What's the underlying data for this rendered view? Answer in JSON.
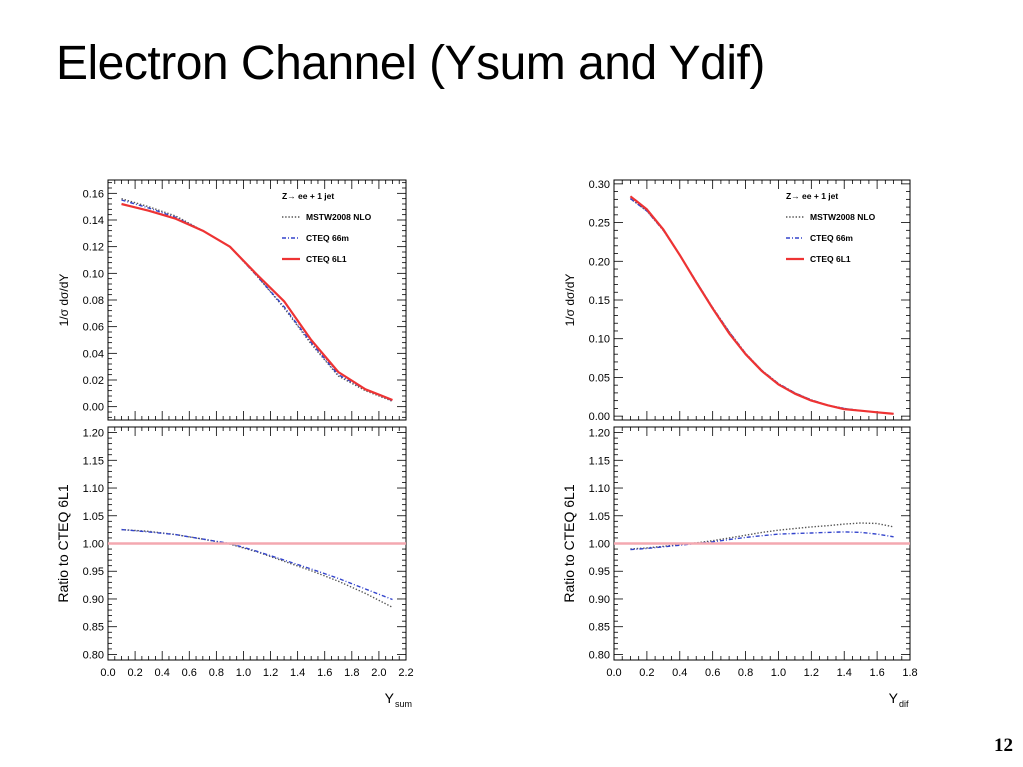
{
  "slide": {
    "title": "Electron Channel (Ysum and Ydif)",
    "page_number": "12"
  },
  "chart_data": [
    {
      "type": "line",
      "panel": "main",
      "title": "",
      "ylabel": "1/σ dσ/dY",
      "xlim": [
        0.0,
        2.2
      ],
      "ylim": [
        -0.01,
        0.17
      ],
      "yticks": [
        "0.00",
        "0.02",
        "0.04",
        "0.06",
        "0.08",
        "0.10",
        "0.12",
        "0.14",
        "0.16"
      ],
      "legend_header": "Z→ ee + 1 jet",
      "legend_position": "top-right",
      "series": [
        {
          "name": "MSTW2008 NLO",
          "style": "dotted",
          "color": "#555555",
          "x": [
            0.1,
            0.3,
            0.5,
            0.7,
            0.9,
            1.1,
            1.3,
            1.5,
            1.7,
            1.9,
            2.1
          ],
          "y": [
            0.156,
            0.15,
            0.143,
            0.132,
            0.12,
            0.098,
            0.074,
            0.047,
            0.023,
            0.012,
            0.004
          ]
        },
        {
          "name": "CTEQ 66m",
          "style": "dashdot",
          "color": "#3344cc",
          "x": [
            0.1,
            0.3,
            0.5,
            0.7,
            0.9,
            1.1,
            1.3,
            1.5,
            1.7,
            1.9,
            2.1
          ],
          "y": [
            0.155,
            0.149,
            0.142,
            0.132,
            0.12,
            0.098,
            0.075,
            0.048,
            0.024,
            0.013,
            0.0045
          ]
        },
        {
          "name": "CTEQ 6L1",
          "style": "solid",
          "color": "#ee3333",
          "x": [
            0.1,
            0.3,
            0.5,
            0.7,
            0.9,
            1.1,
            1.3,
            1.5,
            1.7,
            1.9,
            2.1
          ],
          "y": [
            0.152,
            0.147,
            0.141,
            0.132,
            0.12,
            0.099,
            0.079,
            0.05,
            0.026,
            0.013,
            0.005
          ]
        }
      ]
    },
    {
      "type": "line",
      "panel": "ratio",
      "title": "",
      "xlabel": "Y",
      "xlabel_sub": "sum",
      "ylabel": "Ratio to CTEQ 6L1",
      "xlim": [
        0.0,
        2.2
      ],
      "ylim": [
        0.79,
        1.21
      ],
      "xticks": [
        "0.0",
        "0.2",
        "0.4",
        "0.6",
        "0.8",
        "1.0",
        "1.2",
        "1.4",
        "1.6",
        "1.8",
        "2.0",
        "2.2"
      ],
      "yticks": [
        "0.80",
        "0.85",
        "0.90",
        "0.95",
        "1.00",
        "1.05",
        "1.10",
        "1.15",
        "1.20"
      ],
      "reference_line": 1.0,
      "series": [
        {
          "name": "MSTW2008 NLO",
          "style": "dotted",
          "color": "#555555",
          "x": [
            0.1,
            0.3,
            0.5,
            0.7,
            0.9,
            1.1,
            1.3,
            1.5,
            1.7,
            1.9,
            2.1
          ],
          "y": [
            1.025,
            1.022,
            1.016,
            1.008,
            0.999,
            0.985,
            0.968,
            0.951,
            0.932,
            0.91,
            0.885
          ]
        },
        {
          "name": "CTEQ 66m",
          "style": "dashdot",
          "color": "#3344cc",
          "x": [
            0.1,
            0.3,
            0.5,
            0.7,
            0.9,
            1.1,
            1.3,
            1.5,
            1.7,
            1.9,
            2.1
          ],
          "y": [
            1.025,
            1.021,
            1.016,
            1.008,
            1.0,
            0.986,
            0.97,
            0.954,
            0.937,
            0.918,
            0.899
          ]
        },
        {
          "name": "CTEQ 6L1",
          "style": "solid",
          "color": "#f4a8b0",
          "x": [
            0.0,
            2.2
          ],
          "y": [
            1.0,
            1.0
          ]
        }
      ]
    },
    {
      "type": "line",
      "panel": "main",
      "title": "",
      "ylabel": "1/σ dσ/dY",
      "xlim": [
        0.0,
        1.8
      ],
      "ylim": [
        -0.005,
        0.305
      ],
      "yticks": [
        "0.00",
        "0.05",
        "0.10",
        "0.15",
        "0.20",
        "0.25",
        "0.30"
      ],
      "legend_header": "Z→ ee + 1 jet",
      "legend_position": "top-right",
      "series": [
        {
          "name": "MSTW2008 NLO",
          "style": "dotted",
          "color": "#555555",
          "x": [
            0.1,
            0.2,
            0.3,
            0.4,
            0.5,
            0.6,
            0.7,
            0.8,
            0.9,
            1.0,
            1.1,
            1.2,
            1.3,
            1.4,
            1.5,
            1.6,
            1.7
          ],
          "y": [
            0.281,
            0.265,
            0.24,
            0.208,
            0.174,
            0.14,
            0.109,
            0.081,
            0.059,
            0.042,
            0.03,
            0.021,
            0.014,
            0.01,
            0.007,
            0.005,
            0.003
          ]
        },
        {
          "name": "CTEQ 66m",
          "style": "dashdot",
          "color": "#3344cc",
          "x": [
            0.1,
            0.2,
            0.3,
            0.4,
            0.5,
            0.6,
            0.7,
            0.8,
            0.9,
            1.0,
            1.1,
            1.2,
            1.3,
            1.4,
            1.5,
            1.6,
            1.7
          ],
          "y": [
            0.281,
            0.265,
            0.24,
            0.208,
            0.174,
            0.14,
            0.109,
            0.081,
            0.059,
            0.042,
            0.03,
            0.021,
            0.014,
            0.01,
            0.007,
            0.005,
            0.003
          ]
        },
        {
          "name": "CTEQ 6L1",
          "style": "solid",
          "color": "#ee3333",
          "x": [
            0.1,
            0.2,
            0.3,
            0.4,
            0.5,
            0.6,
            0.7,
            0.8,
            0.9,
            1.0,
            1.1,
            1.2,
            1.3,
            1.4,
            1.5,
            1.6,
            1.7
          ],
          "y": [
            0.284,
            0.267,
            0.241,
            0.208,
            0.173,
            0.139,
            0.107,
            0.08,
            0.058,
            0.041,
            0.029,
            0.02,
            0.014,
            0.009,
            0.007,
            0.005,
            0.003
          ]
        }
      ]
    },
    {
      "type": "line",
      "panel": "ratio",
      "title": "",
      "xlabel": "Y",
      "xlabel_sub": "dif",
      "ylabel": "Ratio to CTEQ 6L1",
      "xlim": [
        0.0,
        1.8
      ],
      "ylim": [
        0.79,
        1.21
      ],
      "xticks": [
        "0.0",
        "0.2",
        "0.4",
        "0.6",
        "0.8",
        "1.0",
        "1.2",
        "1.4",
        "1.6",
        "1.8"
      ],
      "yticks": [
        "0.80",
        "0.85",
        "0.90",
        "0.95",
        "1.00",
        "1.05",
        "1.10",
        "1.15",
        "1.20"
      ],
      "reference_line": 1.0,
      "series": [
        {
          "name": "MSTW2008 NLO",
          "style": "dotted",
          "color": "#555555",
          "x": [
            0.1,
            0.2,
            0.3,
            0.4,
            0.5,
            0.6,
            0.7,
            0.8,
            0.9,
            1.0,
            1.1,
            1.2,
            1.3,
            1.4,
            1.5,
            1.6,
            1.7
          ],
          "y": [
            0.99,
            0.992,
            0.995,
            0.998,
            1.001,
            1.005,
            1.01,
            1.015,
            1.02,
            1.024,
            1.027,
            1.03,
            1.032,
            1.035,
            1.037,
            1.036,
            1.03
          ]
        },
        {
          "name": "CTEQ 66m",
          "style": "dashdot",
          "color": "#3344cc",
          "x": [
            0.1,
            0.2,
            0.3,
            0.4,
            0.5,
            0.6,
            0.7,
            0.8,
            0.9,
            1.0,
            1.1,
            1.2,
            1.3,
            1.4,
            1.5,
            1.6,
            1.7
          ],
          "y": [
            0.989,
            0.991,
            0.994,
            0.997,
            1.0,
            1.003,
            1.007,
            1.011,
            1.014,
            1.017,
            1.018,
            1.019,
            1.02,
            1.021,
            1.02,
            1.017,
            1.012
          ]
        },
        {
          "name": "CTEQ 6L1",
          "style": "solid",
          "color": "#f4a8b0",
          "x": [
            0.0,
            1.8
          ],
          "y": [
            1.0,
            1.0
          ]
        }
      ]
    }
  ]
}
